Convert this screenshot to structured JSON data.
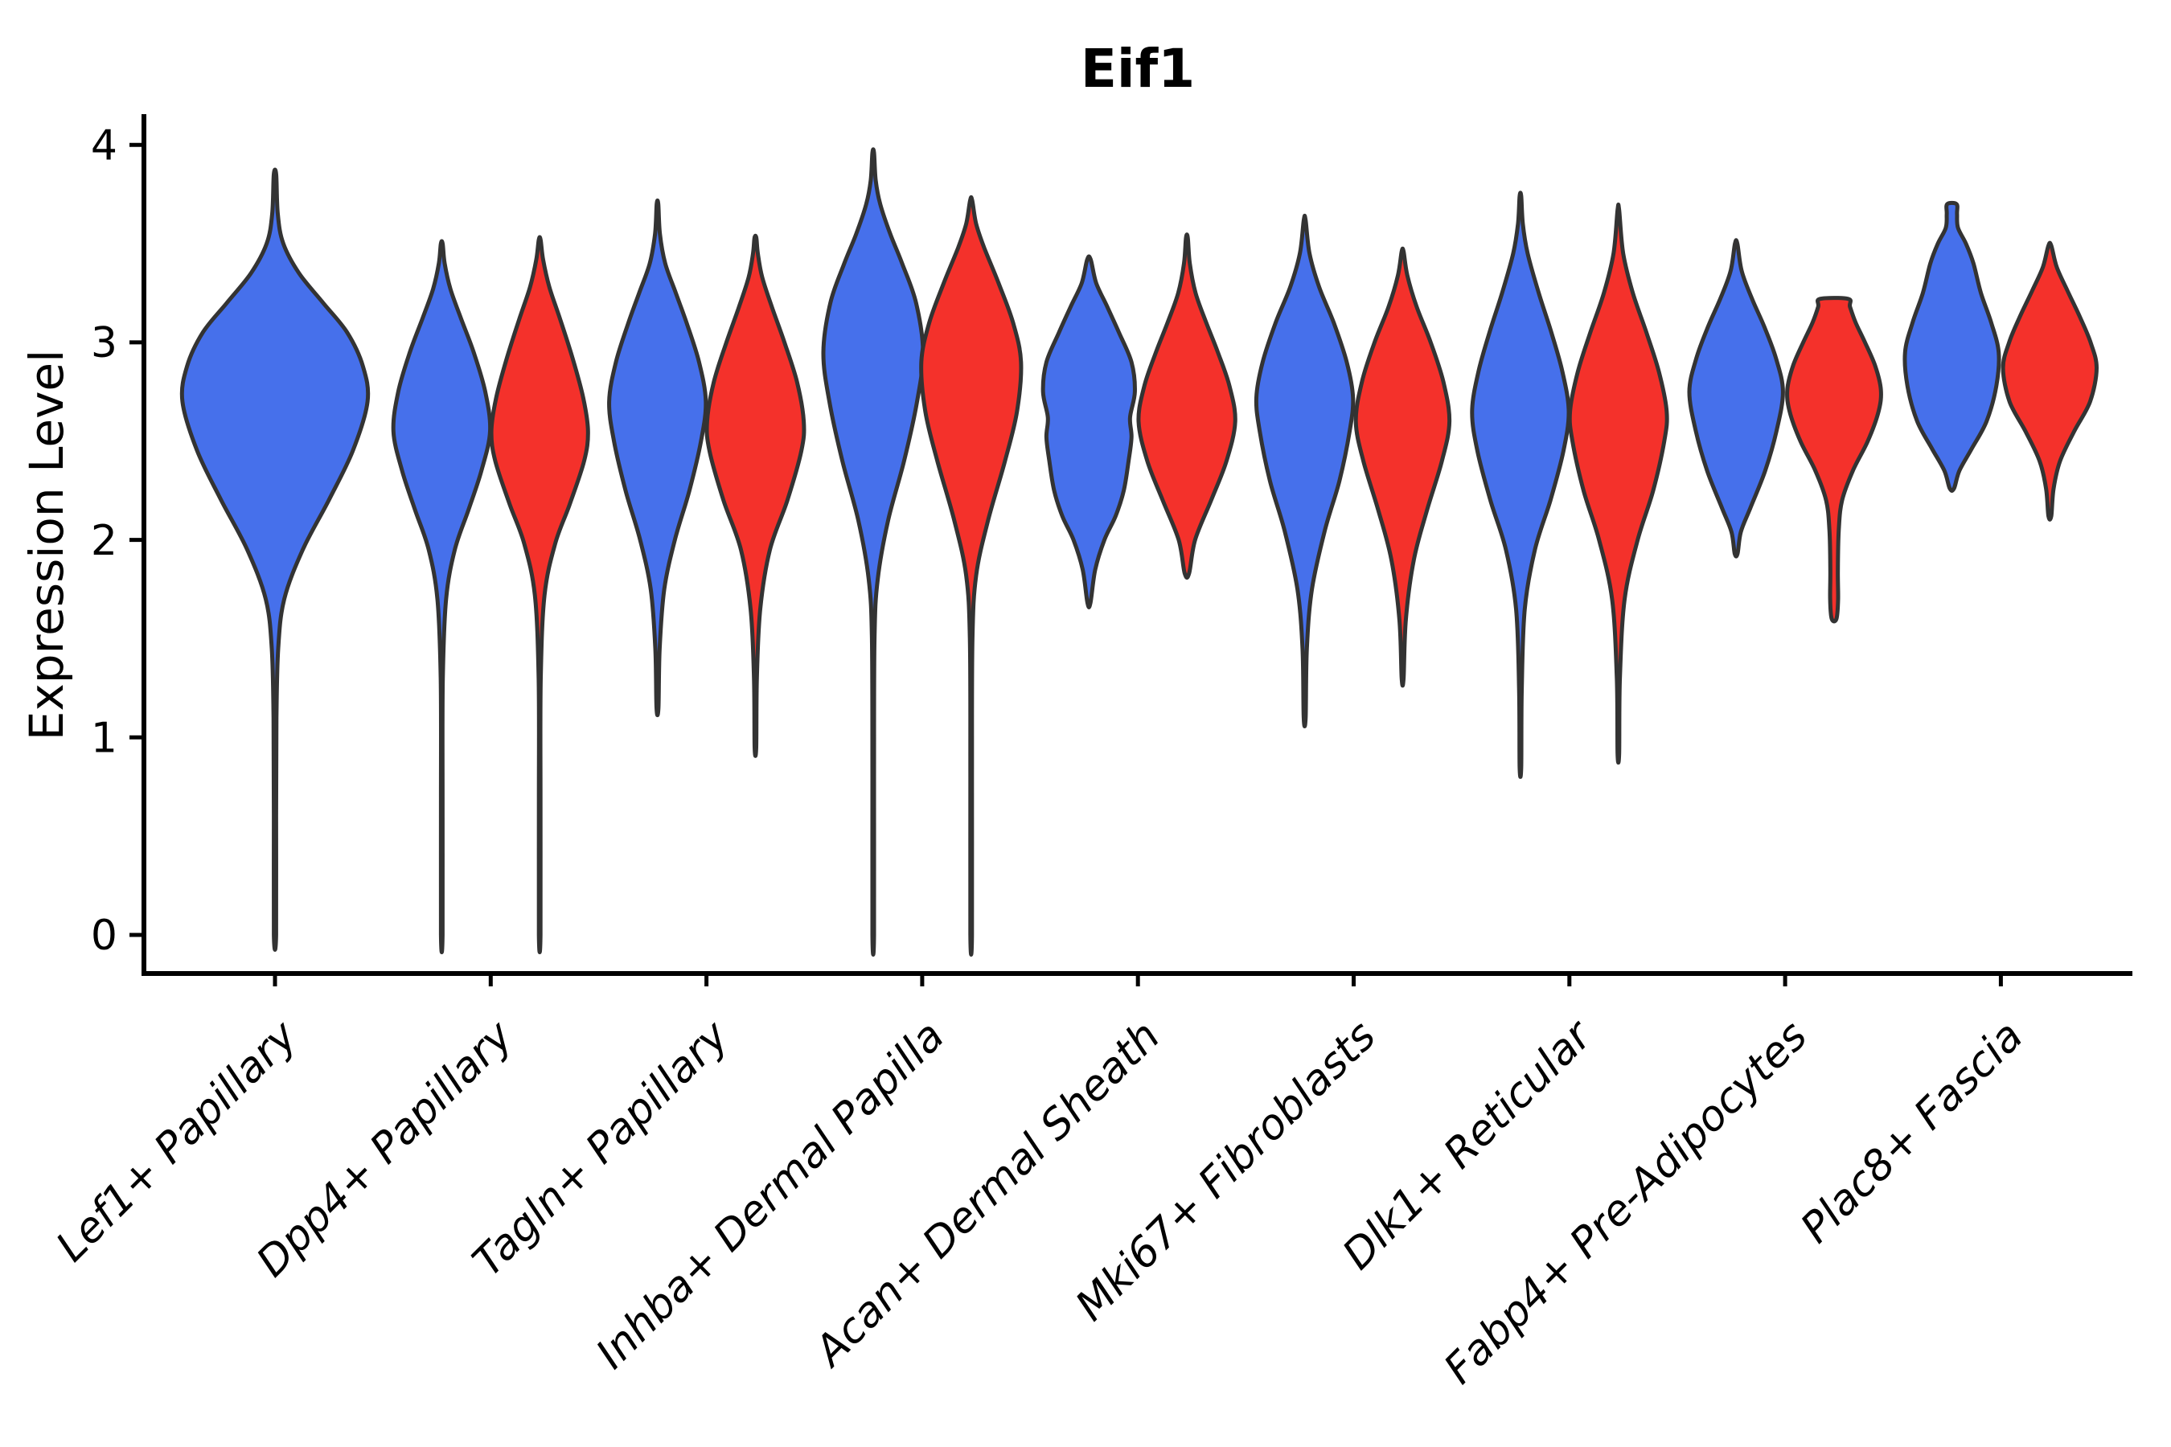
{
  "chart_data": {
    "type": "violin",
    "title": "Eif1",
    "ylabel": "Expression Level",
    "xlabel": "",
    "ylim": [
      0,
      4
    ],
    "yticks": [
      0,
      1,
      2,
      3,
      4
    ],
    "grid": false,
    "legend": "none",
    "categories": [
      "Lef1+ Papillary",
      "Dpp4+ Papillary",
      "Tagln+ Papillary",
      "Inhba+ Dermal Papilla",
      "Acan+ Dermal Sheath",
      "Mki67+ Fibroblasts",
      "Dlk1+ Reticular",
      "Fabp4+ Pre-Adipocytes",
      "Plac8+ Fascia"
    ],
    "colors": {
      "blue": "#4670EB",
      "red": "#F4312B",
      "outline": "#333333",
      "axis": "#000000"
    },
    "violins": [
      {
        "category": "Lef1+ Papillary",
        "category_index": 0,
        "color": "blue",
        "offset": 0,
        "max_halfwidth": 0.429,
        "min": 0,
        "peak": 2.7,
        "max": 3.85,
        "profile": [
          [
            0,
            0.012
          ],
          [
            0.6,
            0.012
          ],
          [
            1.1,
            0.016
          ],
          [
            1.45,
            0.035
          ],
          [
            1.7,
            0.1
          ],
          [
            1.95,
            0.3
          ],
          [
            2.2,
            0.58
          ],
          [
            2.45,
            0.84
          ],
          [
            2.7,
            1.0
          ],
          [
            2.88,
            0.95
          ],
          [
            3.05,
            0.78
          ],
          [
            3.2,
            0.52
          ],
          [
            3.35,
            0.26
          ],
          [
            3.5,
            0.09
          ],
          [
            3.65,
            0.03
          ],
          [
            3.85,
            0.013
          ]
        ]
      },
      {
        "category": "Dpp4+ Papillary",
        "category_index": 1,
        "color": "blue",
        "offset": -0.227,
        "max_halfwidth": 0.224,
        "min": 0,
        "peak": 2.55,
        "max": 3.5,
        "profile": [
          [
            0,
            0.016
          ],
          [
            0.7,
            0.016
          ],
          [
            1.3,
            0.022
          ],
          [
            1.7,
            0.09
          ],
          [
            1.95,
            0.27
          ],
          [
            2.15,
            0.55
          ],
          [
            2.35,
            0.82
          ],
          [
            2.55,
            1.0
          ],
          [
            2.75,
            0.9
          ],
          [
            2.95,
            0.66
          ],
          [
            3.12,
            0.4
          ],
          [
            3.27,
            0.18
          ],
          [
            3.4,
            0.06
          ],
          [
            3.5,
            0.018
          ]
        ]
      },
      {
        "category": "Dpp4+ Papillary",
        "category_index": 1,
        "color": "red",
        "offset": 0.227,
        "max_halfwidth": 0.224,
        "min": 0,
        "peak": 2.55,
        "max": 3.52,
        "profile": [
          [
            0,
            0.016
          ],
          [
            0.7,
            0.016
          ],
          [
            1.3,
            0.022
          ],
          [
            1.72,
            0.1
          ],
          [
            1.98,
            0.32
          ],
          [
            2.18,
            0.62
          ],
          [
            2.4,
            0.92
          ],
          [
            2.55,
            1.0
          ],
          [
            2.72,
            0.9
          ],
          [
            2.92,
            0.68
          ],
          [
            3.12,
            0.42
          ],
          [
            3.28,
            0.2
          ],
          [
            3.42,
            0.07
          ],
          [
            3.52,
            0.018
          ]
        ]
      },
      {
        "category": "Tagln+ Papillary",
        "category_index": 2,
        "color": "blue",
        "offset": -0.227,
        "max_halfwidth": 0.224,
        "min": 1.15,
        "peak": 2.7,
        "max": 3.7,
        "profile": [
          [
            1.15,
            0.02
          ],
          [
            1.45,
            0.045
          ],
          [
            1.75,
            0.14
          ],
          [
            2.0,
            0.36
          ],
          [
            2.25,
            0.66
          ],
          [
            2.5,
            0.9
          ],
          [
            2.7,
            1.0
          ],
          [
            2.9,
            0.86
          ],
          [
            3.1,
            0.6
          ],
          [
            3.25,
            0.38
          ],
          [
            3.4,
            0.16
          ],
          [
            3.55,
            0.05
          ],
          [
            3.7,
            0.016
          ]
        ]
      },
      {
        "category": "Tagln+ Papillary",
        "category_index": 2,
        "color": "red",
        "offset": 0.227,
        "max_halfwidth": 0.224,
        "min": 0.95,
        "peak": 2.6,
        "max": 3.53,
        "profile": [
          [
            0.95,
            0.016
          ],
          [
            1.3,
            0.03
          ],
          [
            1.65,
            0.1
          ],
          [
            1.95,
            0.3
          ],
          [
            2.2,
            0.66
          ],
          [
            2.45,
            0.95
          ],
          [
            2.6,
            1.0
          ],
          [
            2.8,
            0.86
          ],
          [
            3.0,
            0.6
          ],
          [
            3.18,
            0.34
          ],
          [
            3.33,
            0.14
          ],
          [
            3.45,
            0.05
          ],
          [
            3.53,
            0.018
          ]
        ]
      },
      {
        "category": "Inhba+ Dermal Papilla",
        "category_index": 3,
        "color": "blue",
        "offset": -0.227,
        "max_halfwidth": 0.231,
        "min": 0,
        "peak": 2.95,
        "max": 3.96,
        "profile": [
          [
            0,
            0.016
          ],
          [
            0.8,
            0.016
          ],
          [
            1.5,
            0.026
          ],
          [
            1.8,
            0.09
          ],
          [
            2.1,
            0.3
          ],
          [
            2.4,
            0.62
          ],
          [
            2.7,
            0.88
          ],
          [
            2.95,
            1.0
          ],
          [
            3.2,
            0.86
          ],
          [
            3.4,
            0.58
          ],
          [
            3.55,
            0.34
          ],
          [
            3.7,
            0.14
          ],
          [
            3.82,
            0.05
          ],
          [
            3.96,
            0.016
          ]
        ]
      },
      {
        "category": "Inhba+ Dermal Papilla",
        "category_index": 3,
        "color": "red",
        "offset": 0.227,
        "max_halfwidth": 0.231,
        "min": 0,
        "peak": 2.9,
        "max": 3.72,
        "profile": [
          [
            0,
            0.016
          ],
          [
            0.8,
            0.016
          ],
          [
            1.5,
            0.026
          ],
          [
            1.82,
            0.1
          ],
          [
            2.1,
            0.34
          ],
          [
            2.4,
            0.68
          ],
          [
            2.65,
            0.92
          ],
          [
            2.9,
            1.0
          ],
          [
            3.1,
            0.84
          ],
          [
            3.3,
            0.55
          ],
          [
            3.48,
            0.26
          ],
          [
            3.6,
            0.1
          ],
          [
            3.72,
            0.02
          ]
        ]
      },
      {
        "category": "Acan+ Dermal Sheath",
        "category_index": 4,
        "color": "blue",
        "offset": -0.227,
        "max_halfwidth": 0.224,
        "min": 1.68,
        "peak": 2.75,
        "max": 3.42,
        "profile": [
          [
            1.68,
            0.03
          ],
          [
            1.85,
            0.13
          ],
          [
            2.0,
            0.32
          ],
          [
            2.12,
            0.55
          ],
          [
            2.25,
            0.72
          ],
          [
            2.4,
            0.82
          ],
          [
            2.52,
            0.88
          ],
          [
            2.62,
            0.85
          ],
          [
            2.75,
            0.95
          ],
          [
            2.9,
            0.88
          ],
          [
            3.05,
            0.62
          ],
          [
            3.18,
            0.38
          ],
          [
            3.3,
            0.15
          ],
          [
            3.42,
            0.035
          ]
        ]
      },
      {
        "category": "Acan+ Dermal Sheath",
        "category_index": 4,
        "color": "red",
        "offset": 0.227,
        "max_halfwidth": 0.224,
        "min": 1.83,
        "peak": 2.6,
        "max": 3.53,
        "profile": [
          [
            1.83,
            0.045
          ],
          [
            2.0,
            0.17
          ],
          [
            2.2,
            0.5
          ],
          [
            2.4,
            0.82
          ],
          [
            2.6,
            1.0
          ],
          [
            2.78,
            0.88
          ],
          [
            2.95,
            0.64
          ],
          [
            3.1,
            0.4
          ],
          [
            3.25,
            0.18
          ],
          [
            3.4,
            0.06
          ],
          [
            3.53,
            0.018
          ]
        ]
      },
      {
        "category": "Mki67+ Fibroblasts",
        "category_index": 5,
        "color": "blue",
        "offset": -0.227,
        "max_halfwidth": 0.224,
        "min": 1.1,
        "peak": 2.72,
        "max": 3.62,
        "profile": [
          [
            1.1,
            0.02
          ],
          [
            1.45,
            0.045
          ],
          [
            1.75,
            0.15
          ],
          [
            2.05,
            0.42
          ],
          [
            2.3,
            0.72
          ],
          [
            2.55,
            0.93
          ],
          [
            2.72,
            1.0
          ],
          [
            2.9,
            0.87
          ],
          [
            3.1,
            0.6
          ],
          [
            3.28,
            0.3
          ],
          [
            3.45,
            0.1
          ],
          [
            3.62,
            0.018
          ]
        ]
      },
      {
        "category": "Mki67+ Fibroblasts",
        "category_index": 5,
        "color": "red",
        "offset": 0.227,
        "max_halfwidth": 0.217,
        "min": 1.3,
        "peak": 2.6,
        "max": 3.46,
        "profile": [
          [
            1.3,
            0.02
          ],
          [
            1.6,
            0.07
          ],
          [
            1.9,
            0.24
          ],
          [
            2.15,
            0.52
          ],
          [
            2.4,
            0.84
          ],
          [
            2.6,
            1.0
          ],
          [
            2.8,
            0.87
          ],
          [
            3.0,
            0.6
          ],
          [
            3.18,
            0.3
          ],
          [
            3.34,
            0.1
          ],
          [
            3.46,
            0.02
          ]
        ]
      },
      {
        "category": "Dlk1+ Reticular",
        "category_index": 6,
        "color": "blue",
        "offset": -0.227,
        "max_halfwidth": 0.224,
        "min": 0.85,
        "peak": 2.65,
        "max": 3.74,
        "profile": [
          [
            0.85,
            0.016
          ],
          [
            1.25,
            0.028
          ],
          [
            1.65,
            0.09
          ],
          [
            1.95,
            0.3
          ],
          [
            2.2,
            0.62
          ],
          [
            2.45,
            0.89
          ],
          [
            2.65,
            1.0
          ],
          [
            2.85,
            0.87
          ],
          [
            3.05,
            0.64
          ],
          [
            3.25,
            0.38
          ],
          [
            3.45,
            0.15
          ],
          [
            3.6,
            0.05
          ],
          [
            3.74,
            0.016
          ]
        ]
      },
      {
        "category": "Dlk1+ Reticular",
        "category_index": 6,
        "color": "red",
        "offset": 0.227,
        "max_halfwidth": 0.224,
        "min": 0.92,
        "peak": 2.65,
        "max": 3.67,
        "profile": [
          [
            0.92,
            0.016
          ],
          [
            1.3,
            0.032
          ],
          [
            1.7,
            0.13
          ],
          [
            2.0,
            0.4
          ],
          [
            2.25,
            0.72
          ],
          [
            2.5,
            0.95
          ],
          [
            2.65,
            1.0
          ],
          [
            2.85,
            0.84
          ],
          [
            3.05,
            0.58
          ],
          [
            3.25,
            0.3
          ],
          [
            3.45,
            0.1
          ],
          [
            3.67,
            0.016
          ]
        ]
      },
      {
        "category": "Fabp4+ Pre-Adipocytes",
        "category_index": 7,
        "color": "blue",
        "offset": -0.227,
        "max_halfwidth": 0.217,
        "min": 1.93,
        "peak": 2.75,
        "max": 3.5,
        "profile": [
          [
            1.93,
            0.03
          ],
          [
            2.04,
            0.1
          ],
          [
            2.16,
            0.3
          ],
          [
            2.35,
            0.62
          ],
          [
            2.55,
            0.86
          ],
          [
            2.75,
            1.0
          ],
          [
            2.92,
            0.85
          ],
          [
            3.08,
            0.6
          ],
          [
            3.22,
            0.34
          ],
          [
            3.36,
            0.12
          ],
          [
            3.5,
            0.025
          ]
        ]
      },
      {
        "category": "Fabp4+ Pre-Adipocytes",
        "category_index": 7,
        "color": "red",
        "offset": 0.227,
        "max_halfwidth": 0.217,
        "min": 1.6,
        "peak": 2.76,
        "max": 3.22,
        "profile": [
          [
            1.6,
            0.05
          ],
          [
            1.7,
            0.085
          ],
          [
            1.85,
            0.08
          ],
          [
            2.05,
            0.1
          ],
          [
            2.2,
            0.17
          ],
          [
            2.35,
            0.4
          ],
          [
            2.5,
            0.72
          ],
          [
            2.65,
            0.95
          ],
          [
            2.76,
            1.0
          ],
          [
            2.88,
            0.88
          ],
          [
            3.0,
            0.66
          ],
          [
            3.1,
            0.46
          ],
          [
            3.18,
            0.34
          ],
          [
            3.22,
            0.3
          ]
        ]
      },
      {
        "category": "Plac8+ Fascia",
        "category_index": 8,
        "color": "blue",
        "offset": -0.227,
        "max_halfwidth": 0.217,
        "min": 2.26,
        "peak": 2.95,
        "max": 3.7,
        "profile": [
          [
            2.26,
            0.045
          ],
          [
            2.35,
            0.16
          ],
          [
            2.46,
            0.42
          ],
          [
            2.6,
            0.74
          ],
          [
            2.78,
            0.95
          ],
          [
            2.95,
            1.0
          ],
          [
            3.1,
            0.84
          ],
          [
            3.25,
            0.62
          ],
          [
            3.4,
            0.46
          ],
          [
            3.5,
            0.3
          ],
          [
            3.58,
            0.13
          ],
          [
            3.65,
            0.11
          ],
          [
            3.7,
            0.1
          ]
        ]
      },
      {
        "category": "Plac8+ Fascia",
        "category_index": 8,
        "color": "red",
        "offset": 0.227,
        "max_halfwidth": 0.217,
        "min": 2.12,
        "peak": 2.87,
        "max": 3.49,
        "profile": [
          [
            2.12,
            0.03
          ],
          [
            2.26,
            0.08
          ],
          [
            2.4,
            0.22
          ],
          [
            2.55,
            0.52
          ],
          [
            2.7,
            0.86
          ],
          [
            2.87,
            1.0
          ],
          [
            3.0,
            0.87
          ],
          [
            3.13,
            0.64
          ],
          [
            3.26,
            0.38
          ],
          [
            3.38,
            0.15
          ],
          [
            3.49,
            0.03
          ]
        ]
      }
    ]
  }
}
